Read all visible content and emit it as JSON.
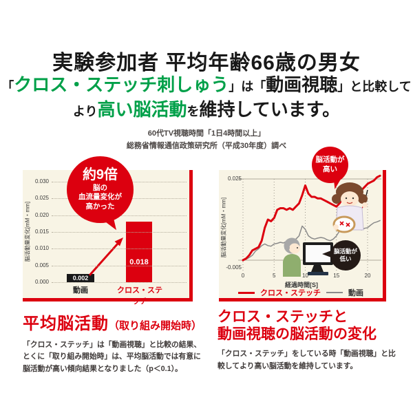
{
  "colors": {
    "accent_red": "#dc000f",
    "accent_green": "#00a049",
    "panel_cream": "#f8f4e5",
    "dark_text": "#191919",
    "gray_series": "#8a8a8a",
    "dark_bubble": "#241a16"
  },
  "title": {
    "line1": "実験参加者 平均年齢66歳の男女",
    "line2": {
      "bracket1": "「",
      "green": "クロス・ステッチ刺しゅう",
      "mid": "」は「",
      "black": "動画視聴",
      "tail": "」と比較して"
    },
    "line3": {
      "pre": "より",
      "green": "高い脳活動",
      "mid": "を",
      "tail": "維持しています。"
    }
  },
  "subtitle": {
    "line1": "60代TV視聴時間「1日4時間以上」",
    "line2": "総務省情報通信政策研究所（平成30年度）調べ"
  },
  "chart_data": [
    {
      "type": "bar",
      "title": "平均脳活動（取り組み開始時）",
      "categories": [
        "動画",
        "クロス・ステッチ"
      ],
      "values": [
        0.002,
        0.018
      ],
      "value_labels": [
        "0.002",
        "0.018"
      ],
      "bar_colors": [
        "#191919",
        "#dc000f"
      ],
      "ylabel": "脳活動量変化[mM・mm]",
      "ylim": [
        0,
        0.03
      ],
      "ytick_labels": [
        "0.030",
        "0.025",
        "0.020",
        "0.015",
        "0.010",
        "0.005",
        "0.000"
      ],
      "grid": "dotted-horizontal",
      "annotation": {
        "headline": "約9倍",
        "sub": [
          "脳の",
          "血流量変化が",
          "高かった"
        ]
      }
    },
    {
      "type": "line",
      "title": "クロス・ステッチと動画視聴の脳活動の変化",
      "xlabel": "経過時間[S]",
      "ylabel": "脳活動量変化[mM・mm]",
      "xlim": [
        0,
        22
      ],
      "ylim": [
        -0.005,
        0.027
      ],
      "xticks": [
        0,
        5,
        10,
        15,
        20
      ],
      "ytick_labels": [
        "0.025",
        "-0.005"
      ],
      "axis_lines_at": [
        0.025,
        0
      ],
      "grid": "dotted-vertical",
      "legend_position": "bottom",
      "annotations": {
        "high": [
          "脳活動が",
          "高い"
        ],
        "low": [
          "脳活動が",
          "低い"
        ]
      },
      "t": [
        0,
        0.5,
        1,
        1.5,
        2,
        2.5,
        3,
        3.5,
        4,
        4.5,
        5,
        5.5,
        6,
        6.5,
        7,
        7.5,
        8,
        8.5,
        9,
        9.5,
        10,
        10.5,
        11,
        11.5,
        12,
        12.5,
        13,
        13.5,
        14,
        14.5,
        15,
        15.5,
        16,
        16.5,
        17,
        17.5,
        18,
        18.5,
        19,
        19.5,
        20,
        20.5,
        21,
        21.5,
        22
      ],
      "series": [
        {
          "name": "クロス・ステッチ",
          "color": "#dc000f",
          "values": [
            0,
            0.0005,
            0.0015,
            0.003,
            0.0035,
            0.004,
            0.006,
            0.01,
            0.0125,
            0.012,
            0.013,
            0.0155,
            0.016,
            0.016,
            0.0155,
            0.016,
            0.0155,
            0.0165,
            0.0175,
            0.02,
            0.023,
            0.0205,
            0.0195,
            0.0195,
            0.019,
            0.019,
            0.0185,
            0.018,
            0.0175,
            0.017,
            0.0165,
            0.0175,
            0.019,
            0.0205,
            0.0215,
            0.022,
            0.0215,
            0.021,
            0.0215,
            0.0225,
            0.0235,
            0.024,
            0.0245,
            0.0255,
            0.026
          ]
        },
        {
          "name": "動画",
          "color": "#8a8a8a",
          "values": [
            0,
            0.0003,
            0.0008,
            0.0015,
            0.0028,
            0.0035,
            0.0045,
            0.005,
            0.0045,
            0.0043,
            0.005,
            0.0052,
            0.0055,
            0.0053,
            0.0058,
            0.006,
            0.006,
            0.0065,
            0.0075,
            0.0105,
            0.0095,
            0.0075,
            0.0068,
            0.0065,
            0.0068,
            0.007,
            0.0068,
            0.0063,
            0.006,
            0.0065,
            0.0075,
            0.009,
            0.0105,
            0.0115,
            0.012,
            0.0118,
            0.011,
            0.0102,
            0.0093,
            0.0098,
            0.01,
            0.0108,
            0.0115,
            0.0118,
            0.0122
          ]
        }
      ]
    }
  ],
  "sections": {
    "left": {
      "heading": "平均脳活動",
      "heading_sub": "（取り組み開始時）",
      "body": "「クロス・ステッチ」は「動画視聴」と比較の結果、とくに「取り組み開始時」は、平均脳活動では有意に脳活動が高い傾向結果となりました（p＜0.1）。"
    },
    "right": {
      "heading_line1": "クロス・ステッチと",
      "heading_line2": "動画視聴の脳活動の変化",
      "body": "「クロス・ステッチ」をしている時「動画視聴」と比較してより高い脳活動を維持しています。"
    }
  }
}
